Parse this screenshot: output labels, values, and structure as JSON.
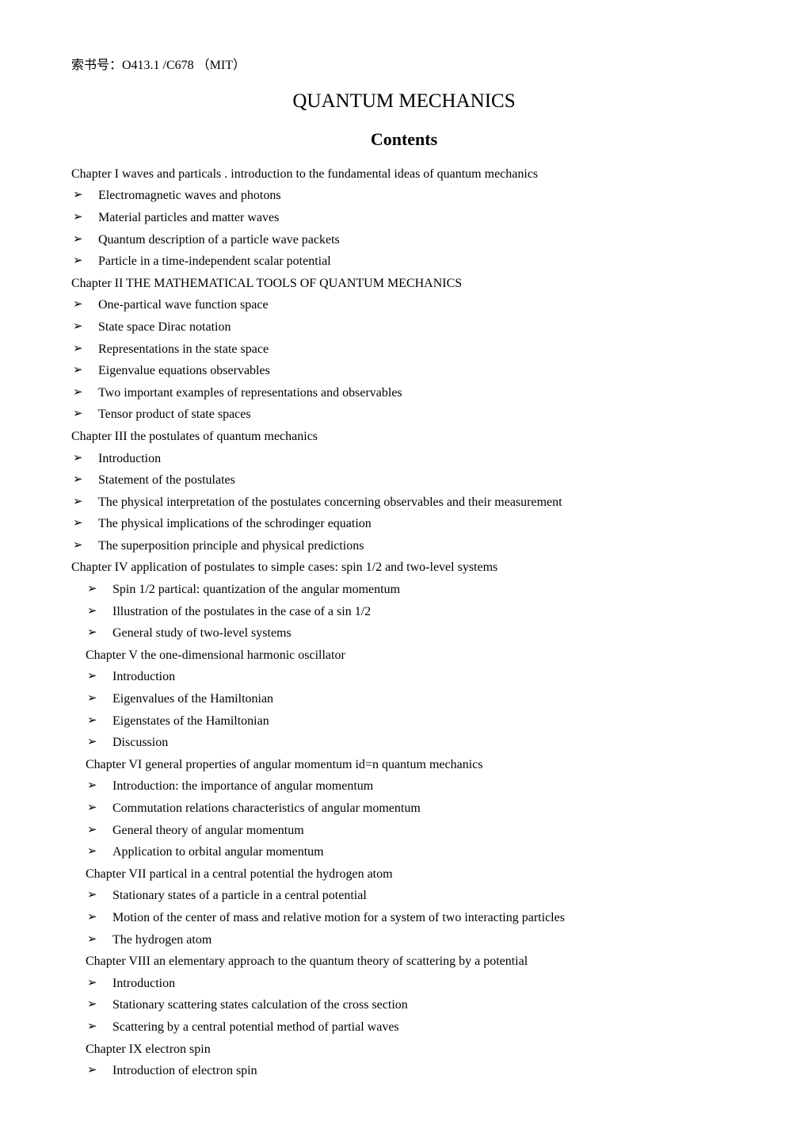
{
  "call_number": "索书号：O413.1 /C678 （MIT）",
  "title": "QUANTUM MECHANICS",
  "subtitle": "Contents",
  "bullet_glyph": "➢",
  "chapters": [
    {
      "heading": "Chapter I waves and particals . introduction to the fundamental ideas of quantum mechanics",
      "indent": false,
      "items": [
        "Electromagnetic waves and photons",
        "Material particles and matter waves",
        "Quantum description of a particle wave packets",
        "Particle in a time-independent scalar potential"
      ]
    },
    {
      "heading": "Chapter II THE MATHEMATICAL TOOLS OF QUANTUM MECHANICS",
      "indent": false,
      "items": [
        "One-partical wave function space",
        "State space Dirac notation",
        "Representations in the state space",
        "Eigenvalue equations observables",
        "Two important examples of representations and observables",
        "Tensor product of state spaces"
      ]
    },
    {
      "heading": "Chapter III the postulates of quantum mechanics",
      "indent": false,
      "items": [
        "Introduction",
        "Statement of the postulates",
        "The physical interpretation of the postulates concerning observables and their measurement",
        "The physical implications of the schrodinger equation",
        "The superposition principle and physical predictions"
      ]
    },
    {
      "heading": "Chapter IV application of postulates to simple cases: spin 1/2 and two-level systems",
      "indent": false,
      "items_indent": true,
      "items": [
        "Spin 1/2 partical: quantization of the angular momentum",
        "Illustration of the postulates in the case of a sin 1/2",
        "General study of two-level systems"
      ]
    },
    {
      "heading": "Chapter V the one-dimensional harmonic oscillator",
      "indent": true,
      "items_indent": true,
      "items": [
        "Introduction",
        "Eigenvalues of the Hamiltonian",
        "Eigenstates of the Hamiltonian",
        "Discussion"
      ]
    },
    {
      "heading": "Chapter VI general properties of angular momentum id=n quantum mechanics",
      "indent": true,
      "items_indent": true,
      "items": [
        "Introduction: the importance of angular momentum",
        "Commutation relations characteristics of angular momentum",
        "General theory of angular momentum",
        "Application to orbital angular momentum"
      ]
    },
    {
      "heading": "Chapter VII partical in a central potential the hydrogen atom",
      "indent": true,
      "items_indent": true,
      "items": [
        "Stationary states of a particle in a central potential",
        "Motion of the center of mass   and relative motion for a system of two interacting particles",
        "The hydrogen atom"
      ]
    },
    {
      "heading": "Chapter VIII an elementary approach to the quantum theory of  scattering by a potential",
      "indent": true,
      "items_indent": true,
      "items": [
        "Introduction",
        "Stationary scattering states calculation of the cross section",
        "Scattering by a central potential method of partial waves"
      ]
    },
    {
      "heading": "Chapter IX electron spin",
      "indent": true,
      "items_indent": true,
      "items": [
        "Introduction of electron spin"
      ]
    }
  ]
}
